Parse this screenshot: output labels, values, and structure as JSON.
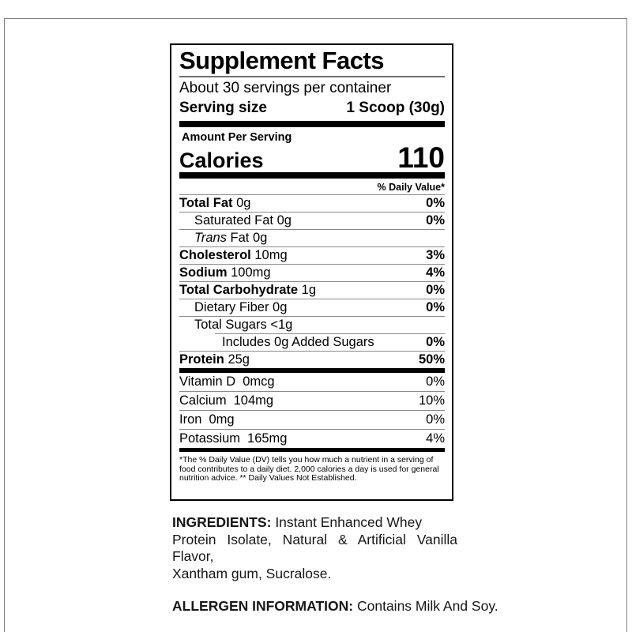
{
  "frame": {
    "border_color": "#7d7d7d"
  },
  "label": {
    "title": "Supplement Facts",
    "servings_per_container": "About 30 servings per container",
    "serving_size": {
      "label": "Serving size",
      "value": "1 Scoop (30g)"
    },
    "amount_per_serving": "Amount Per Serving",
    "calories": {
      "label": "Calories",
      "value": "110"
    },
    "daily_value_header": "% Daily Value*",
    "nutrients": [
      {
        "name": "Total Fat",
        "amount": "0g",
        "dv": "0%"
      },
      {
        "name": "Saturated Fat",
        "amount": "0g",
        "dv": "0%"
      },
      {
        "name_italic": "Trans",
        "name": "Fat",
        "amount": "0g",
        "dv": ""
      },
      {
        "name": "Cholesterol",
        "amount": "10mg",
        "dv": "3%"
      },
      {
        "name": "Sodium",
        "amount": "100mg",
        "dv": "4%"
      },
      {
        "name": "Total Carbohydrate",
        "amount": "1g",
        "dv": "0%"
      },
      {
        "name": "Dietary Fiber",
        "amount": "0g",
        "dv": "0%"
      },
      {
        "name": "Total Sugars",
        "amount": "<1g",
        "dv": ""
      },
      {
        "name": "Includes 0g Added Sugars",
        "amount": "",
        "dv": "0%"
      },
      {
        "name": "Protein",
        "amount": "25g",
        "dv": "50%"
      }
    ],
    "vitamins": [
      {
        "name": "Vitamin D",
        "amount": "0mcg",
        "dv": "0%"
      },
      {
        "name": "Calcium",
        "amount": "104mg",
        "dv": "10%"
      },
      {
        "name": "Iron",
        "amount": "0mg",
        "dv": "0%"
      },
      {
        "name": "Potassium",
        "amount": "165mg",
        "dv": "4%"
      }
    ],
    "footnote_lines": [
      "*The % Daily Value (DV) tells you how much a nutrient in a serving of",
      "food contributes to a daily diet. 2,000 calories a day is used for general",
      "nutrition advice. ** Daily Values Not Established."
    ]
  },
  "ingredients": {
    "heading": "INGREDIENTS:",
    "line1_rest": "Instant Enhanced Whey",
    "line2": "Protein Isolate, Natural & Artificial Vanilla Flavor,",
    "line3": "Xantham gum, Sucralose."
  },
  "allergen": {
    "heading": "ALLERGEN INFORMATION:",
    "text": "Contains Milk And Soy."
  }
}
